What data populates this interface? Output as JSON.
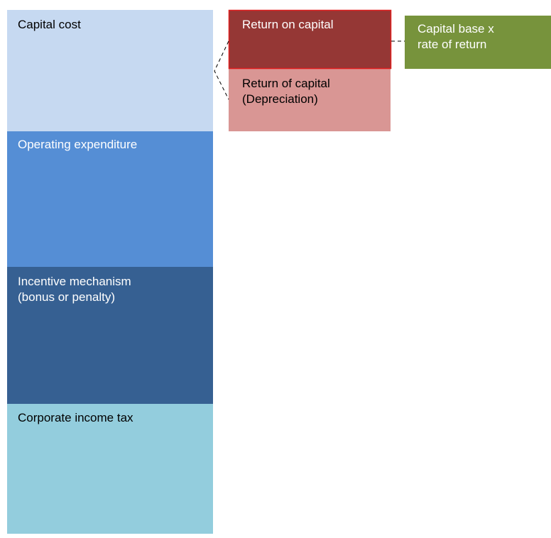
{
  "blocks": [
    {
      "lines": [
        "Capital cost"
      ]
    },
    {
      "lines": [
        "Operating expenditure"
      ]
    },
    {
      "lines": [
        "Incentive mechanism",
        "(bonus or penalty)"
      ]
    },
    {
      "lines": [
        "Corporate income tax"
      ]
    }
  ],
  "capital_split": [
    {
      "lines": [
        "Return on capital"
      ]
    },
    {
      "lines": [
        "Return of capital",
        "(Depreciation)"
      ]
    }
  ],
  "formula": {
    "lines": [
      "Capital base x",
      "rate of return"
    ]
  }
}
